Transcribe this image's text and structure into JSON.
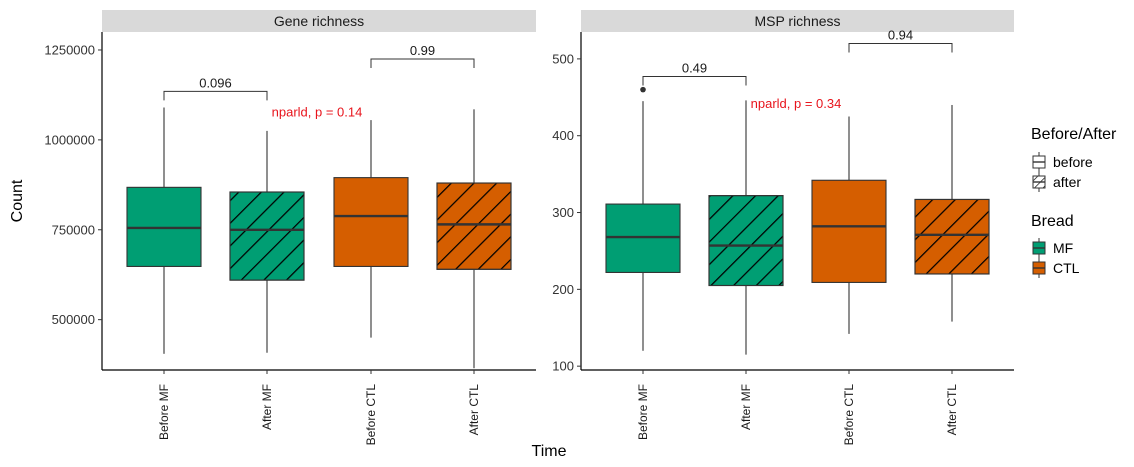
{
  "chart_data": {
    "type": "box",
    "xlabel": "Time",
    "ylabel": "Count",
    "categories": [
      "Before MF",
      "After MF",
      "Before CTL",
      "After CTL"
    ],
    "colors": {
      "MF": "#009E73",
      "CTL": "#D55E00"
    },
    "panels": [
      {
        "title": "Gene richness",
        "ylim": [
          360000,
          1300000
        ],
        "yticks": [
          500000,
          750000,
          1000000,
          1250000
        ],
        "ytick_labels": [
          "500000",
          "750000",
          "1000000",
          "1250000"
        ],
        "boxes": [
          {
            "category": "Before MF",
            "bread": "MF",
            "time": "before",
            "min": 405000,
            "q1": 648000,
            "median": 755000,
            "q3": 868000,
            "max": 1090000,
            "outliers": []
          },
          {
            "category": "After MF",
            "bread": "MF",
            "time": "after",
            "min": 408000,
            "q1": 610000,
            "median": 750000,
            "q3": 855000,
            "max": 1025000,
            "outliers": []
          },
          {
            "category": "Before CTL",
            "bread": "CTL",
            "time": "before",
            "min": 450000,
            "q1": 648000,
            "median": 788000,
            "q3": 895000,
            "max": 1055000,
            "outliers": []
          },
          {
            "category": "After CTL",
            "bread": "CTL",
            "time": "after",
            "min": 365000,
            "q1": 640000,
            "median": 765000,
            "q3": 880000,
            "max": 1085000,
            "outliers": []
          }
        ],
        "brackets": [
          {
            "from": 0,
            "to": 1,
            "y": 1135000,
            "label": "0.096"
          },
          {
            "from": 2,
            "to": 3,
            "y": 1225000,
            "label": "0.99"
          }
        ],
        "stat_label": {
          "text": "nparld, p = 0.14",
          "x_category": 1,
          "y": 1090000,
          "color": "#e8141c"
        }
      },
      {
        "title": "MSP richness",
        "ylim": [
          95,
          535
        ],
        "yticks": [
          100,
          200,
          300,
          400,
          500
        ],
        "ytick_labels": [
          "100",
          "200",
          "300",
          "400",
          "500"
        ],
        "boxes": [
          {
            "category": "Before MF",
            "bread": "MF",
            "time": "before",
            "min": 120,
            "q1": 222,
            "median": 268,
            "q3": 311,
            "max": 445,
            "outliers": [
              460
            ]
          },
          {
            "category": "After MF",
            "bread": "MF",
            "time": "after",
            "min": 115,
            "q1": 205,
            "median": 257,
            "q3": 322,
            "max": 446,
            "outliers": []
          },
          {
            "category": "Before CTL",
            "bread": "CTL",
            "time": "before",
            "min": 142,
            "q1": 209,
            "median": 282,
            "q3": 342,
            "max": 425,
            "outliers": []
          },
          {
            "category": "After CTL",
            "bread": "CTL",
            "time": "after",
            "min": 158,
            "q1": 220,
            "median": 271,
            "q3": 317,
            "max": 440,
            "outliers": []
          }
        ],
        "brackets": [
          {
            "from": 0,
            "to": 1,
            "y": 477,
            "label": "0.49"
          },
          {
            "from": 2,
            "to": 3,
            "y": 520,
            "label": "0.94"
          }
        ],
        "stat_label": {
          "text": "nparld, p = 0.34",
          "x_category": 1,
          "y": 448,
          "color": "#e8141c"
        }
      }
    ],
    "legends": [
      {
        "title": "Before/After",
        "items": [
          {
            "label": "before",
            "pattern": "none"
          },
          {
            "label": "after",
            "pattern": "stripe"
          }
        ]
      },
      {
        "title": "Bread",
        "items": [
          {
            "label": "MF",
            "color": "#009E73"
          },
          {
            "label": "CTL",
            "color": "#D55E00"
          }
        ]
      }
    ]
  }
}
